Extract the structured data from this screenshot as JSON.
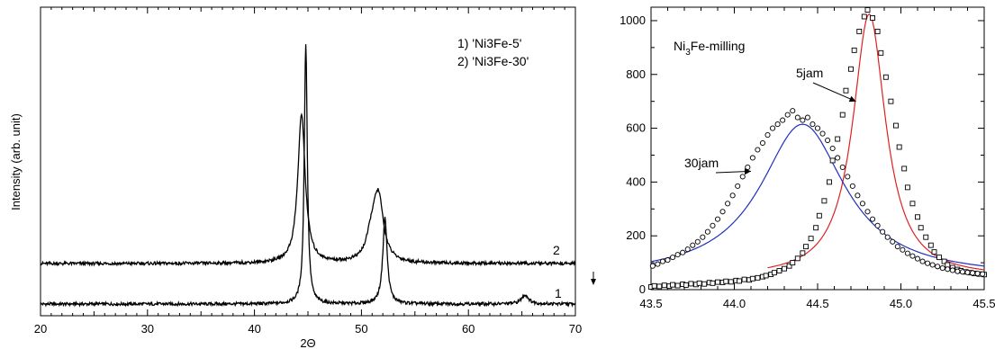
{
  "chart_data": [
    {
      "type": "line",
      "title": "",
      "xlabel": "2Θ",
      "ylabel": "Intensity (arb. unit)",
      "xlim": [
        20,
        70
      ],
      "x_ticks": [
        "20",
        "30",
        "40",
        "50",
        "60",
        "70"
      ],
      "y_ticks": [],
      "legend": [
        "1) 'Ni3Fe-5'",
        "2) 'Ni3Fe-30'"
      ],
      "legend_position": "top-right",
      "series": [
        {
          "label": "1",
          "color": "#000000",
          "peaks": [
            {
              "x": 44.8,
              "height": 1.0,
              "width": 0.17
            },
            {
              "x": 52.2,
              "height": 0.33,
              "width": 0.25
            },
            {
              "x": 65.3,
              "height": 0.035,
              "width": 0.4
            }
          ],
          "baseline": 0.0
        },
        {
          "label": "2",
          "color": "#000000",
          "peaks": [
            {
              "x": 44.4,
              "height": 0.57,
              "width": 0.42
            },
            {
              "x": 51.6,
              "height": 0.23,
              "width": 0.55
            },
            {
              "x": 51.0,
              "height": 0.1,
              "width": 0.6
            }
          ],
          "baseline": 0.155
        }
      ]
    },
    {
      "type": "scatter",
      "title": "Ni3Fe-milling",
      "title_main": "Ni",
      "title_sub": "3",
      "title_rest": "Fe-milling",
      "xlabel": "",
      "ylabel": "",
      "xlim": [
        43.5,
        45.5
      ],
      "ylim": [
        0,
        1050
      ],
      "x_ticks": [
        "43.5",
        "44.0",
        "44.5",
        "45.0",
        "45.5"
      ],
      "y_ticks": [
        "0",
        "200",
        "400",
        "600",
        "800",
        "1000"
      ],
      "grid": false,
      "series": [
        {
          "name": "5jam",
          "marker": "square",
          "fit_color": "#e02020",
          "fit": {
            "center": 44.81,
            "amplitude": 980,
            "hwhm": 0.12,
            "baseline": 45
          },
          "x": [
            43.5,
            43.52,
            43.55,
            43.58,
            43.61,
            43.63,
            43.66,
            43.69,
            43.71,
            43.74,
            43.77,
            43.79,
            43.82,
            43.85,
            43.87,
            43.9,
            43.93,
            43.95,
            43.98,
            44.01,
            44.03,
            44.06,
            44.09,
            44.11,
            44.14,
            44.17,
            44.19,
            44.22,
            44.24,
            44.27,
            44.3,
            44.33,
            44.35,
            44.38,
            44.41,
            44.43,
            44.46,
            44.49,
            44.51,
            44.54,
            44.57,
            44.59,
            44.62,
            44.65,
            44.67,
            44.7,
            44.72,
            44.75,
            44.78,
            44.8,
            44.83,
            44.86,
            44.88,
            44.91,
            44.94,
            44.97,
            44.99,
            45.02,
            45.04,
            45.07,
            45.1,
            45.12,
            45.15,
            45.18,
            45.2,
            45.23,
            45.26,
            45.28,
            45.31,
            45.34,
            45.36,
            45.39,
            45.42,
            45.44,
            45.47,
            45.5
          ],
          "y": [
            10,
            14,
            12,
            16,
            13,
            18,
            15,
            20,
            17,
            22,
            19,
            24,
            21,
            26,
            24,
            28,
            27,
            31,
            29,
            34,
            32,
            38,
            36,
            41,
            44,
            48,
            52,
            57,
            63,
            70,
            78,
            88,
            100,
            116,
            136,
            160,
            190,
            230,
            275,
            330,
            400,
            480,
            560,
            650,
            740,
            820,
            890,
            960,
            1015,
            1040,
            1010,
            960,
            880,
            790,
            700,
            610,
            530,
            450,
            380,
            320,
            270,
            230,
            195,
            165,
            140,
            120,
            105,
            92,
            82,
            75,
            70,
            66,
            63,
            60,
            58,
            56
          ]
        },
        {
          "name": "30jam",
          "marker": "circle",
          "fit_color": "#1f2fbf",
          "fit": {
            "center": 44.41,
            "amplitude": 570,
            "hwhm": 0.31,
            "baseline": 45
          },
          "x": [
            43.51,
            43.54,
            43.57,
            43.6,
            43.63,
            43.66,
            43.69,
            43.72,
            43.75,
            43.78,
            43.81,
            43.84,
            43.87,
            43.9,
            43.93,
            43.96,
            43.99,
            44.02,
            44.05,
            44.08,
            44.11,
            44.14,
            44.17,
            44.2,
            44.23,
            44.26,
            44.29,
            44.32,
            44.35,
            44.38,
            44.41,
            44.44,
            44.47,
            44.5,
            44.53,
            44.56,
            44.59,
            44.62,
            44.65,
            44.68,
            44.71,
            44.74,
            44.77,
            44.8,
            44.83,
            44.86,
            44.89,
            44.92,
            44.95,
            44.98,
            45.01,
            45.04,
            45.07,
            45.1,
            45.13,
            45.16,
            45.19,
            45.22,
            45.25,
            45.28,
            45.31,
            45.34,
            45.37,
            45.4,
            45.43,
            45.46,
            45.49
          ],
          "y": [
            88,
            95,
            105,
            110,
            120,
            130,
            138,
            150,
            165,
            178,
            195,
            215,
            238,
            262,
            290,
            320,
            350,
            385,
            420,
            455,
            490,
            520,
            545,
            575,
            600,
            615,
            630,
            650,
            665,
            640,
            630,
            640,
            615,
            600,
            580,
            555,
            525,
            490,
            455,
            420,
            385,
            350,
            320,
            290,
            262,
            238,
            215,
            195,
            178,
            160,
            148,
            135,
            125,
            115,
            105,
            98,
            92,
            86,
            80,
            76,
            72,
            68,
            66,
            64,
            62,
            60,
            58
          ]
        }
      ],
      "annotations": [
        {
          "text": "5jam",
          "arrow_to": [
            44.73,
            700
          ]
        },
        {
          "text": "30jam",
          "arrow_to": [
            44.1,
            440
          ]
        }
      ]
    }
  ]
}
